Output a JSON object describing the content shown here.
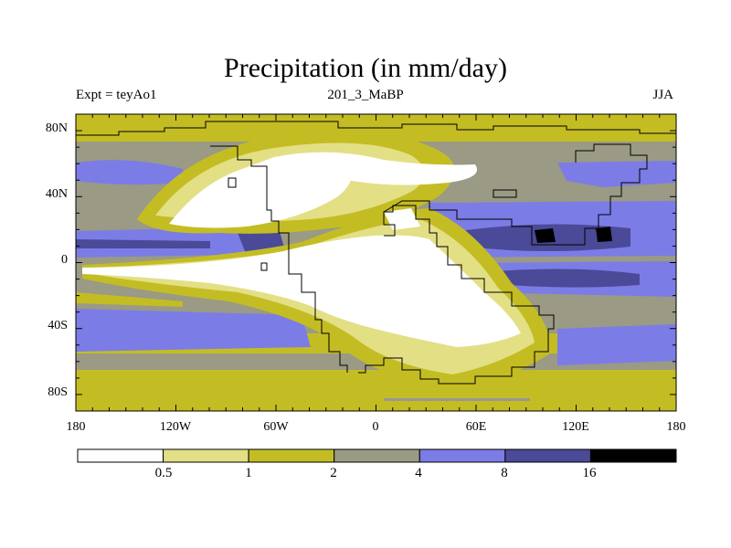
{
  "title": "Precipitation (in mm/day)",
  "subtitle_left": "Expt = teyAo1",
  "subtitle_center": "201_3_MaBP",
  "subtitle_right": "JJA",
  "lat_labels": [
    "80N",
    "40N",
    "0",
    "40S",
    "80S"
  ],
  "lon_labels": [
    "180",
    "120W",
    "60W",
    "0",
    "60E",
    "120E",
    "180"
  ],
  "colorbar": {
    "labels": [
      "0.5",
      "1",
      "2",
      "4",
      "8",
      "16"
    ],
    "colors": [
      "#ffffff",
      "#e3df85",
      "#c3bd23",
      "#9a9a85",
      "#7c7ce6",
      "#4a4a98",
      "#000000"
    ]
  },
  "colors": {
    "land_outline": "#000000",
    "frame": "#000000"
  }
}
